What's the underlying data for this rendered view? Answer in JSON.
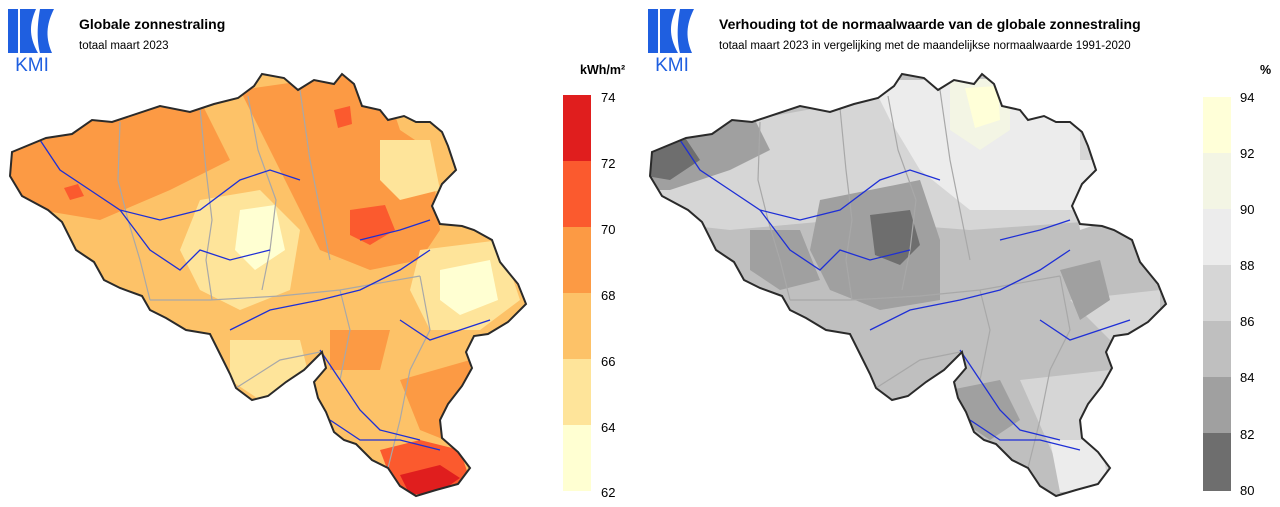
{
  "logo_text": "KMI",
  "colors": {
    "logo_blue": "#1f5fe0",
    "border": "#2a2a2a",
    "rivers": "#1e2fd6",
    "provinces": "#a8a8a8"
  },
  "maps": [
    {
      "title": "Globale zonnestraling",
      "subtitle": "totaal maart 2023",
      "unit": "kWh/m²",
      "legend": {
        "ticks": [
          "74",
          "72",
          "70",
          "68",
          "66",
          "64",
          "62"
        ],
        "colors": [
          "#e01e1e",
          "#fb5a2e",
          "#fc9a44",
          "#fdc268",
          "#fee49a",
          "#ffffd2"
        ]
      }
    },
    {
      "title": "Verhouding tot de normaalwaarde van de globale zonnestraling",
      "subtitle": "totaal maart 2023 in vergelijking met de maandelijkse normaalwaarde 1991-2020",
      "unit": "%",
      "legend": {
        "ticks": [
          "94",
          "92",
          "90",
          "88",
          "86",
          "84",
          "82",
          "80"
        ],
        "colors": [
          "#ffffd8",
          "#f3f5e4",
          "#ececec",
          "#d6d6d6",
          "#bfbfbf",
          "#a0a0a0",
          "#6e6e6e"
        ]
      }
    }
  ]
}
